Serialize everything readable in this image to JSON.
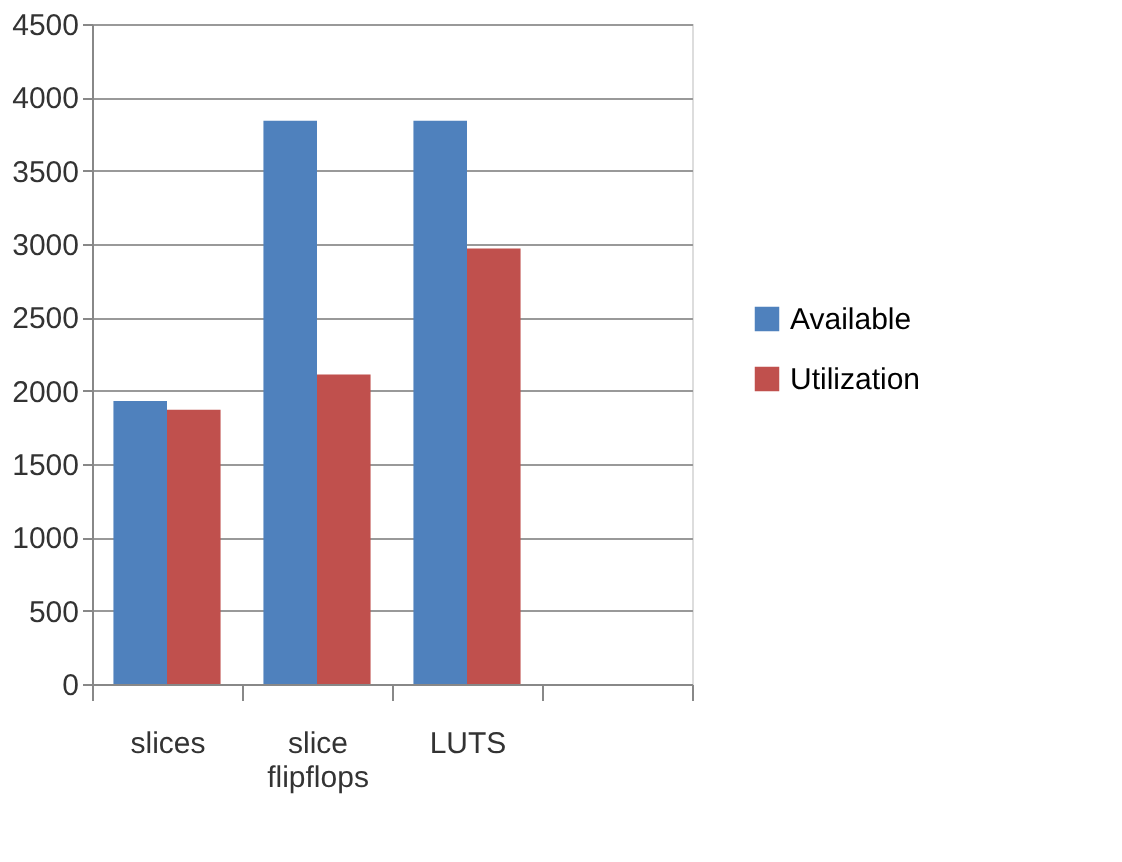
{
  "chart_data": {
    "type": "bar",
    "categories": [
      "slices",
      "slice flipflops",
      "LUTS",
      null
    ],
    "series": [
      {
        "name": "Available",
        "color": "#4f81bd",
        "values": [
          1930,
          3840,
          3840,
          null
        ]
      },
      {
        "name": "Utilization",
        "color": "#c0504d",
        "values": [
          1870,
          2110,
          2970,
          null
        ]
      }
    ],
    "ylim": [
      0,
      4500
    ],
    "yticks": [
      0,
      500,
      1000,
      1500,
      2000,
      2500,
      3000,
      3500,
      4000,
      4500
    ],
    "grid": "y",
    "legend": "right"
  }
}
